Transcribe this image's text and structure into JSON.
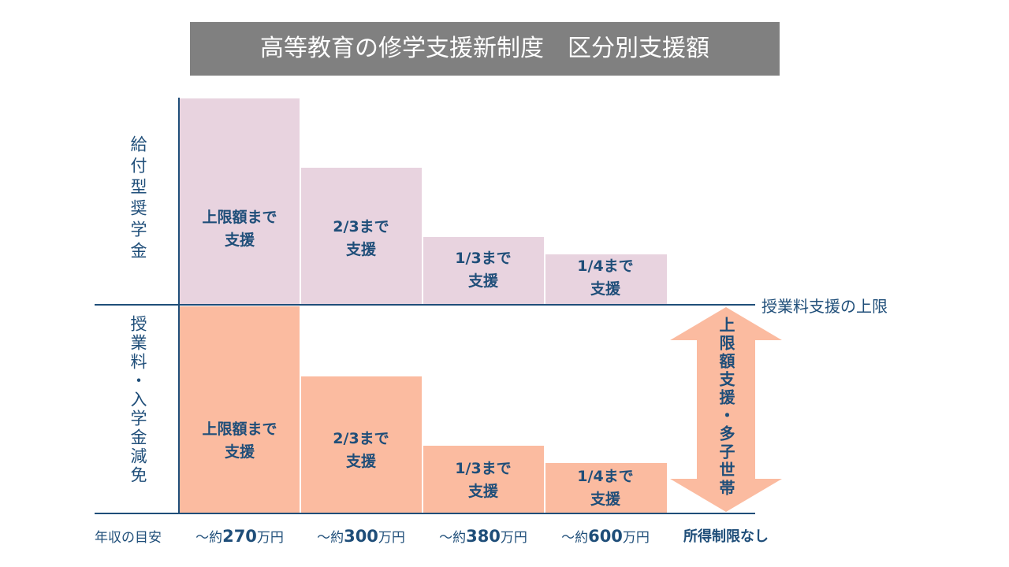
{
  "title": "高等教育の修学支援新制度　区分別支援額",
  "rows": [
    {
      "label": "給付型奨学金",
      "cells": [
        [
          "上限額まで",
          "支援"
        ],
        [
          "2/3まで",
          "支援"
        ],
        [
          "1/3まで",
          "支援"
        ],
        [
          "1/4まで",
          "支援"
        ]
      ]
    },
    {
      "label": "授業料・入学金減免",
      "cells": [
        [
          "上限額まで",
          "支援"
        ],
        [
          "2/3まで",
          "支援"
        ],
        [
          "1/3まで",
          "支援"
        ],
        [
          "1/4まで",
          "支援"
        ]
      ]
    }
  ],
  "limit_label": "授業料支援の上限",
  "arrow_label": "上限額支援・多子世帯",
  "income": {
    "label": "年収の目安",
    "columns": [
      {
        "prefix": "～約",
        "amount": "270",
        "unit": "万円"
      },
      {
        "prefix": "～約",
        "amount": "300",
        "unit": "万円"
      },
      {
        "prefix": "～約",
        "amount": "380",
        "unit": "万円"
      },
      {
        "prefix": "～約",
        "amount": "600",
        "unit": "万円"
      }
    ],
    "no_limit": "所得制限なし"
  }
}
